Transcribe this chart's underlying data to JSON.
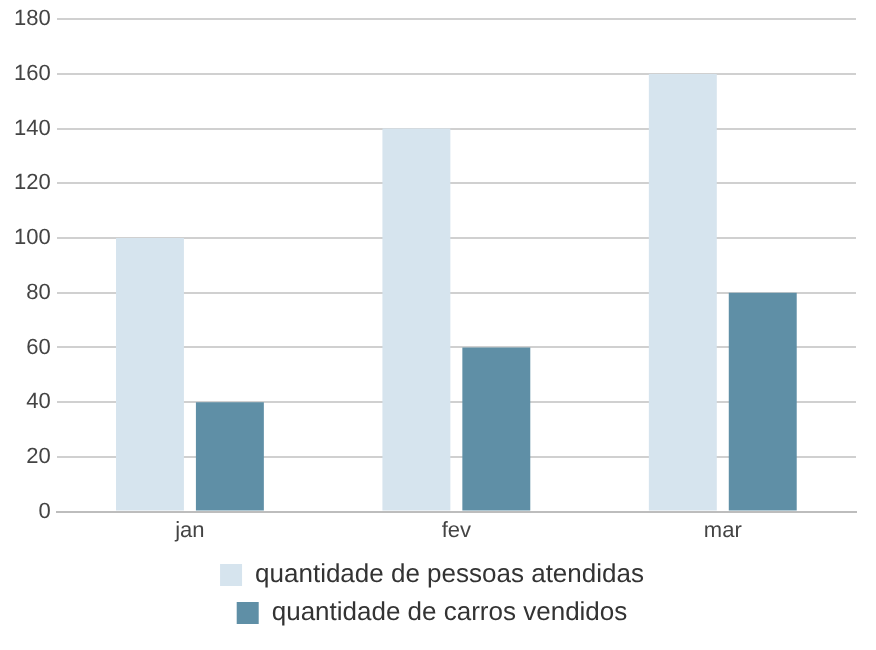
{
  "chart_data": {
    "type": "bar",
    "categories": [
      "jan",
      "fev",
      "mar"
    ],
    "series": [
      {
        "name": "quantidade de pessoas atendidas",
        "color": "#d6e4ee",
        "values": [
          100,
          140,
          160
        ]
      },
      {
        "name": "quantidade de carros vendidos",
        "color": "#5f8fa6",
        "values": [
          40,
          60,
          80
        ]
      }
    ],
    "ylim": [
      0,
      180
    ],
    "yticks": [
      0,
      20,
      40,
      60,
      80,
      100,
      120,
      140,
      160,
      180
    ],
    "grid": "y",
    "legend": "bottom"
  }
}
